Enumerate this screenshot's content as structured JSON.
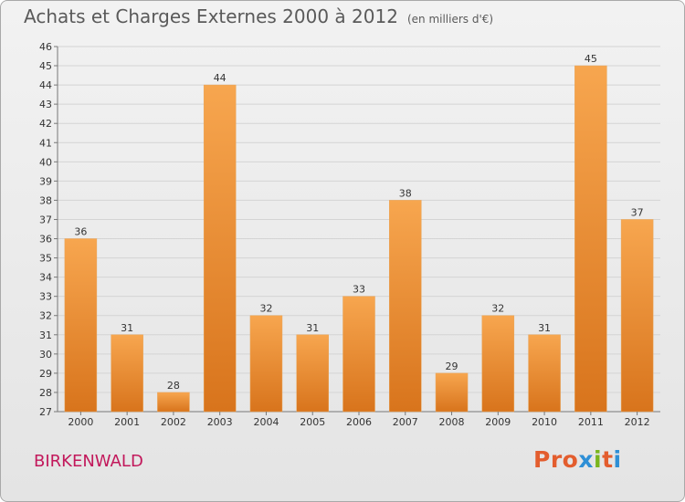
{
  "header": {
    "title": "Achats et Charges Externes 2000 à 2012",
    "unit": "(en milliers d'€)"
  },
  "footer": {
    "place": "BIRKENWALD",
    "logo": "Proxiti"
  },
  "colors": {
    "bar_light": "#f7a64f",
    "bar_dark": "#d8741c",
    "place": "#c2185b",
    "logo_letters": [
      "#e35d2e",
      "#e35d2e",
      "#e35d2e",
      "#2e8fd6",
      "#7ab51d",
      "#e35d2e",
      "#2e8fd6"
    ]
  },
  "chart_data": {
    "type": "bar",
    "title": "Achats et Charges Externes 2000 à 2012",
    "subtitle": "(en milliers d'€)",
    "categories": [
      "2000",
      "2001",
      "2002",
      "2003",
      "2004",
      "2005",
      "2006",
      "2007",
      "2008",
      "2009",
      "2010",
      "2011",
      "2012"
    ],
    "values": [
      36,
      31,
      28,
      44,
      32,
      31,
      33,
      38,
      29,
      32,
      31,
      45,
      37
    ],
    "ylim": [
      27,
      46
    ],
    "yticks": [
      27,
      28,
      29,
      30,
      31,
      32,
      33,
      34,
      35,
      36,
      37,
      38,
      39,
      40,
      41,
      42,
      43,
      44,
      45,
      46
    ],
    "grid": true,
    "xlabel": "",
    "ylabel": ""
  }
}
